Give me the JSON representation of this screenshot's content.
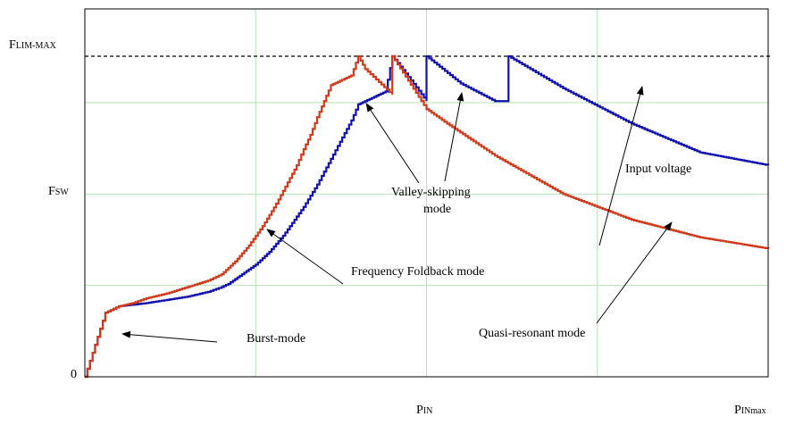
{
  "chart_data": {
    "type": "line",
    "title": "",
    "xlabel": "",
    "ylabel": "",
    "y_ticks": {
      "flim_max": {
        "main": "F",
        "sub": "LIM-MAX"
      },
      "fsw": {
        "main": "F",
        "sub": "SW"
      },
      "zero": "0"
    },
    "x_ticks": {
      "pin": {
        "main": "P",
        "sub": "IN"
      },
      "pinmax": {
        "main": "P",
        "sub": "INmax"
      }
    },
    "grid": true,
    "axis_range": {
      "x": [
        0,
        100
      ],
      "y": [
        0,
        100
      ]
    },
    "reference_line": {
      "y": 100,
      "style": "dashed",
      "color": "#000000"
    },
    "series": [
      {
        "color": "#1010b0",
        "x": [
          0,
          3,
          5,
          7,
          9,
          12,
          15,
          18,
          20,
          21,
          22,
          23,
          24,
          25,
          26,
          27,
          28,
          29,
          30,
          31,
          32,
          33,
          34,
          35,
          36,
          37,
          38,
          39,
          40,
          41,
          42,
          43,
          44,
          45,
          50,
          50,
          55,
          60,
          62,
          62,
          70,
          80,
          90,
          100
        ],
        "y": [
          0,
          20,
          22,
          22.5,
          23,
          24,
          25,
          26.5,
          28,
          29,
          30.5,
          32,
          33.5,
          35,
          37,
          39,
          41.5,
          44,
          47,
          50,
          53,
          56.5,
          60,
          64,
          68,
          72,
          76,
          80,
          85,
          86,
          87,
          88,
          89,
          100,
          86,
          100,
          91.5,
          86,
          86,
          100,
          90,
          79,
          70,
          66
        ]
      },
      {
        "color": "#d03a1a",
        "x": [
          0,
          3,
          5,
          7,
          9,
          12,
          15,
          18,
          20,
          21,
          22,
          23,
          24,
          25,
          26,
          27,
          28,
          29,
          30,
          31,
          32,
          33,
          34,
          35,
          36,
          37,
          38,
          39,
          40,
          41,
          45,
          45,
          50,
          53,
          60,
          70,
          80,
          90,
          100
        ],
        "y": [
          0,
          20,
          22,
          23,
          24.5,
          26,
          28,
          30,
          32,
          34,
          36,
          38.5,
          41,
          44,
          47,
          50.5,
          54,
          58,
          62,
          66,
          71,
          75.5,
          81,
          86,
          91,
          92,
          93,
          94,
          100,
          96,
          88,
          100,
          83.5,
          79,
          69,
          57,
          49,
          43.5,
          40
        ]
      }
    ],
    "annotations": [
      {
        "text": "Burst-mode"
      },
      {
        "text": "Frequency Foldback mode"
      },
      {
        "text": "Valley-skipping"
      },
      {
        "text": "mode"
      },
      {
        "text": "Input voltage"
      },
      {
        "text": "Quasi-resonant mode"
      }
    ]
  }
}
